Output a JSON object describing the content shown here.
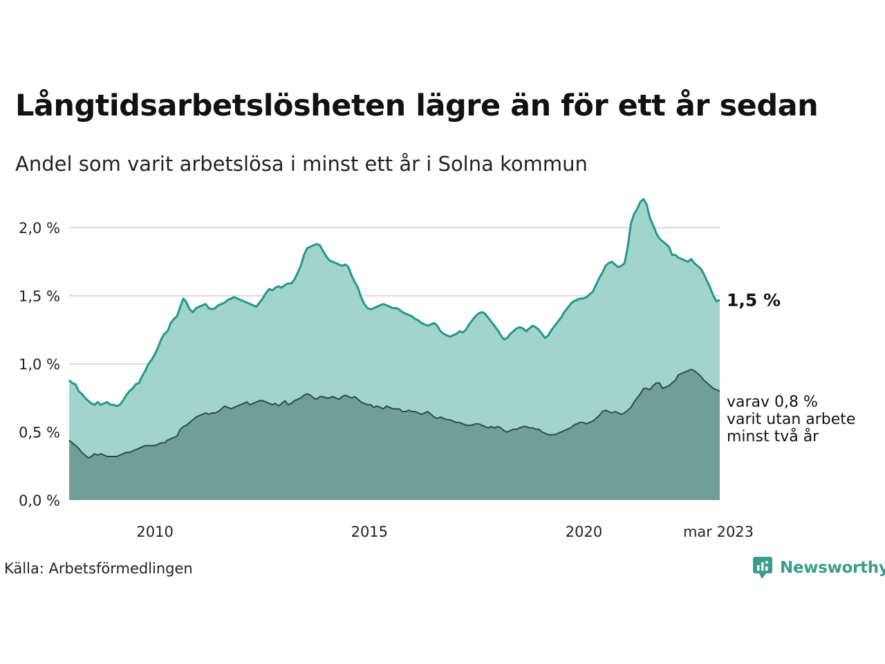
{
  "title": "Långtidsarbetslösheten lägre än för ett år sedan",
  "subtitle": "Andel som varit arbetslösa i minst ett år i Solna kommun",
  "source": "Källa: Arbetsförmedlingen",
  "brand": "Newsworthy",
  "chart_data": {
    "type": "area",
    "x_start": "2008-01",
    "x_end": "2023-03",
    "x_ticks": [
      {
        "label": "2010",
        "x": "2010-01"
      },
      {
        "label": "2015",
        "x": "2015-01"
      },
      {
        "label": "2020",
        "x": "2020-01"
      },
      {
        "label": "mar 2023",
        "x": "2023-03"
      }
    ],
    "y_ticks": [
      {
        "label": "0,0 %",
        "value": 0.0
      },
      {
        "label": "0,5 %",
        "value": 0.5
      },
      {
        "label": "1,0 %",
        "value": 1.0
      },
      {
        "label": "1,5 %",
        "value": 1.5
      },
      {
        "label": "2,0 %",
        "value": 2.0
      }
    ],
    "ylim": [
      0,
      2.25
    ],
    "grid": true,
    "series": [
      {
        "values": [
          0.88,
          0.86,
          0.85,
          0.8,
          0.78,
          0.75,
          0.73,
          0.71,
          0.7,
          0.72,
          0.7,
          0.71,
          0.72,
          0.7,
          0.7,
          0.69,
          0.7,
          0.73,
          0.77,
          0.8,
          0.82,
          0.85,
          0.86,
          0.91,
          0.95,
          1.0,
          1.03,
          1.07,
          1.12,
          1.18,
          1.22,
          1.24,
          1.3,
          1.33,
          1.35,
          1.42,
          1.48,
          1.45,
          1.4,
          1.38,
          1.41,
          1.42,
          1.43,
          1.44,
          1.41,
          1.4,
          1.41,
          1.43,
          1.44,
          1.45,
          1.47,
          1.48,
          1.49,
          1.48,
          1.47,
          1.46,
          1.45,
          1.44,
          1.43,
          1.42,
          1.45,
          1.48,
          1.52,
          1.55,
          1.54,
          1.56,
          1.57,
          1.56,
          1.58,
          1.59,
          1.59,
          1.62,
          1.67,
          1.72,
          1.8,
          1.85,
          1.86,
          1.87,
          1.88,
          1.87,
          1.83,
          1.79,
          1.76,
          1.75,
          1.74,
          1.73,
          1.72,
          1.73,
          1.71,
          1.65,
          1.6,
          1.56,
          1.49,
          1.44,
          1.41,
          1.4,
          1.41,
          1.42,
          1.43,
          1.44,
          1.43,
          1.42,
          1.41,
          1.41,
          1.4,
          1.38,
          1.37,
          1.36,
          1.35,
          1.33,
          1.32,
          1.3,
          1.29,
          1.28,
          1.29,
          1.3,
          1.28,
          1.24,
          1.22,
          1.21,
          1.2,
          1.21,
          1.22,
          1.24,
          1.23,
          1.25,
          1.29,
          1.32,
          1.35,
          1.37,
          1.38,
          1.37,
          1.34,
          1.31,
          1.28,
          1.25,
          1.21,
          1.18,
          1.19,
          1.22,
          1.24,
          1.26,
          1.27,
          1.26,
          1.24,
          1.26,
          1.28,
          1.27,
          1.25,
          1.22,
          1.19,
          1.21,
          1.25,
          1.28,
          1.31,
          1.34,
          1.38,
          1.41,
          1.44,
          1.46,
          1.47,
          1.48,
          1.48,
          1.49,
          1.51,
          1.53,
          1.58,
          1.63,
          1.67,
          1.72,
          1.74,
          1.75,
          1.73,
          1.71,
          1.72,
          1.74,
          1.86,
          2.03,
          2.1,
          2.14,
          2.19,
          2.21,
          2.17,
          2.07,
          2.02,
          1.96,
          1.92,
          1.9,
          1.88,
          1.86,
          1.8,
          1.8,
          1.78,
          1.77,
          1.76,
          1.75,
          1.77,
          1.74,
          1.72,
          1.7,
          1.66,
          1.61,
          1.56,
          1.5,
          1.46,
          1.47
        ]
      },
      {
        "values": [
          0.44,
          0.42,
          0.4,
          0.38,
          0.35,
          0.33,
          0.31,
          0.32,
          0.34,
          0.33,
          0.34,
          0.33,
          0.32,
          0.32,
          0.32,
          0.32,
          0.33,
          0.34,
          0.35,
          0.35,
          0.36,
          0.37,
          0.38,
          0.39,
          0.4,
          0.4,
          0.4,
          0.4,
          0.41,
          0.42,
          0.42,
          0.44,
          0.45,
          0.46,
          0.47,
          0.52,
          0.54,
          0.55,
          0.57,
          0.59,
          0.61,
          0.62,
          0.63,
          0.64,
          0.63,
          0.64,
          0.64,
          0.65,
          0.67,
          0.69,
          0.68,
          0.67,
          0.68,
          0.69,
          0.7,
          0.71,
          0.72,
          0.7,
          0.71,
          0.72,
          0.73,
          0.73,
          0.72,
          0.71,
          0.7,
          0.71,
          0.69,
          0.71,
          0.73,
          0.7,
          0.71,
          0.73,
          0.74,
          0.75,
          0.77,
          0.78,
          0.77,
          0.75,
          0.74,
          0.76,
          0.76,
          0.75,
          0.75,
          0.76,
          0.75,
          0.74,
          0.76,
          0.77,
          0.76,
          0.75,
          0.76,
          0.74,
          0.72,
          0.71,
          0.7,
          0.7,
          0.68,
          0.69,
          0.68,
          0.67,
          0.69,
          0.68,
          0.67,
          0.67,
          0.67,
          0.65,
          0.65,
          0.66,
          0.65,
          0.65,
          0.64,
          0.63,
          0.64,
          0.65,
          0.63,
          0.61,
          0.6,
          0.61,
          0.6,
          0.59,
          0.59,
          0.58,
          0.57,
          0.57,
          0.56,
          0.55,
          0.55,
          0.55,
          0.56,
          0.56,
          0.55,
          0.54,
          0.53,
          0.54,
          0.53,
          0.54,
          0.53,
          0.51,
          0.5,
          0.51,
          0.52,
          0.52,
          0.53,
          0.54,
          0.54,
          0.53,
          0.53,
          0.52,
          0.52,
          0.5,
          0.49,
          0.48,
          0.48,
          0.48,
          0.49,
          0.5,
          0.51,
          0.52,
          0.53,
          0.55,
          0.56,
          0.57,
          0.57,
          0.56,
          0.57,
          0.58,
          0.6,
          0.62,
          0.65,
          0.66,
          0.65,
          0.64,
          0.65,
          0.64,
          0.63,
          0.64,
          0.66,
          0.68,
          0.72,
          0.75,
          0.78,
          0.82,
          0.82,
          0.81,
          0.84,
          0.86,
          0.86,
          0.82,
          0.83,
          0.84,
          0.86,
          0.88,
          0.92,
          0.93,
          0.94,
          0.95,
          0.96,
          0.95,
          0.93,
          0.91,
          0.88,
          0.86,
          0.84,
          0.82,
          0.81,
          0.8
        ]
      }
    ],
    "annotations": {
      "total_label": "1,5 %",
      "sub_label": [
        "varav 0,8 %",
        "varit utan arbete",
        "minst två år"
      ]
    },
    "colors": {
      "total_fill": "#a1d4cc",
      "total_line": "#23978a",
      "sub_fill": "#719f97",
      "sub_line": "#2f4b46",
      "grid": "#d9d9d9"
    }
  }
}
